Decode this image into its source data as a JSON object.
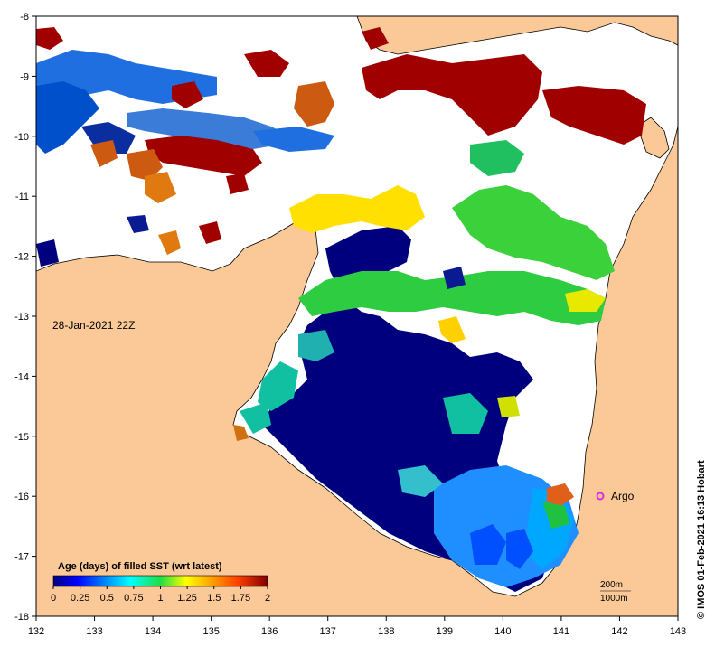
{
  "map": {
    "date_label": "28-Jan-2021 22Z",
    "credit": "© IMOS 01-Feb-2021 16:13 Hobart",
    "argo_label": "Argo",
    "scale_labels": [
      "200m",
      "1000m"
    ],
    "x_ticks": [
      "132",
      "133",
      "134",
      "135",
      "136",
      "137",
      "138",
      "139",
      "140",
      "141",
      "142",
      "143"
    ],
    "y_ticks": [
      "-8",
      "-9",
      "-10",
      "-11",
      "-12",
      "-13",
      "-14",
      "-15",
      "-16",
      "-17",
      "-18"
    ],
    "colors": {
      "land": "#fbc998",
      "sea_no_data": "#ffffff",
      "argo_marker": "#e020e0"
    }
  },
  "legend": {
    "title": "Age (days) of filled SST (wrt latest)",
    "ticks": [
      "0",
      "0.25",
      "0.5",
      "0.75",
      "1",
      "1.25",
      "1.5",
      "1.75",
      "2"
    ]
  }
}
